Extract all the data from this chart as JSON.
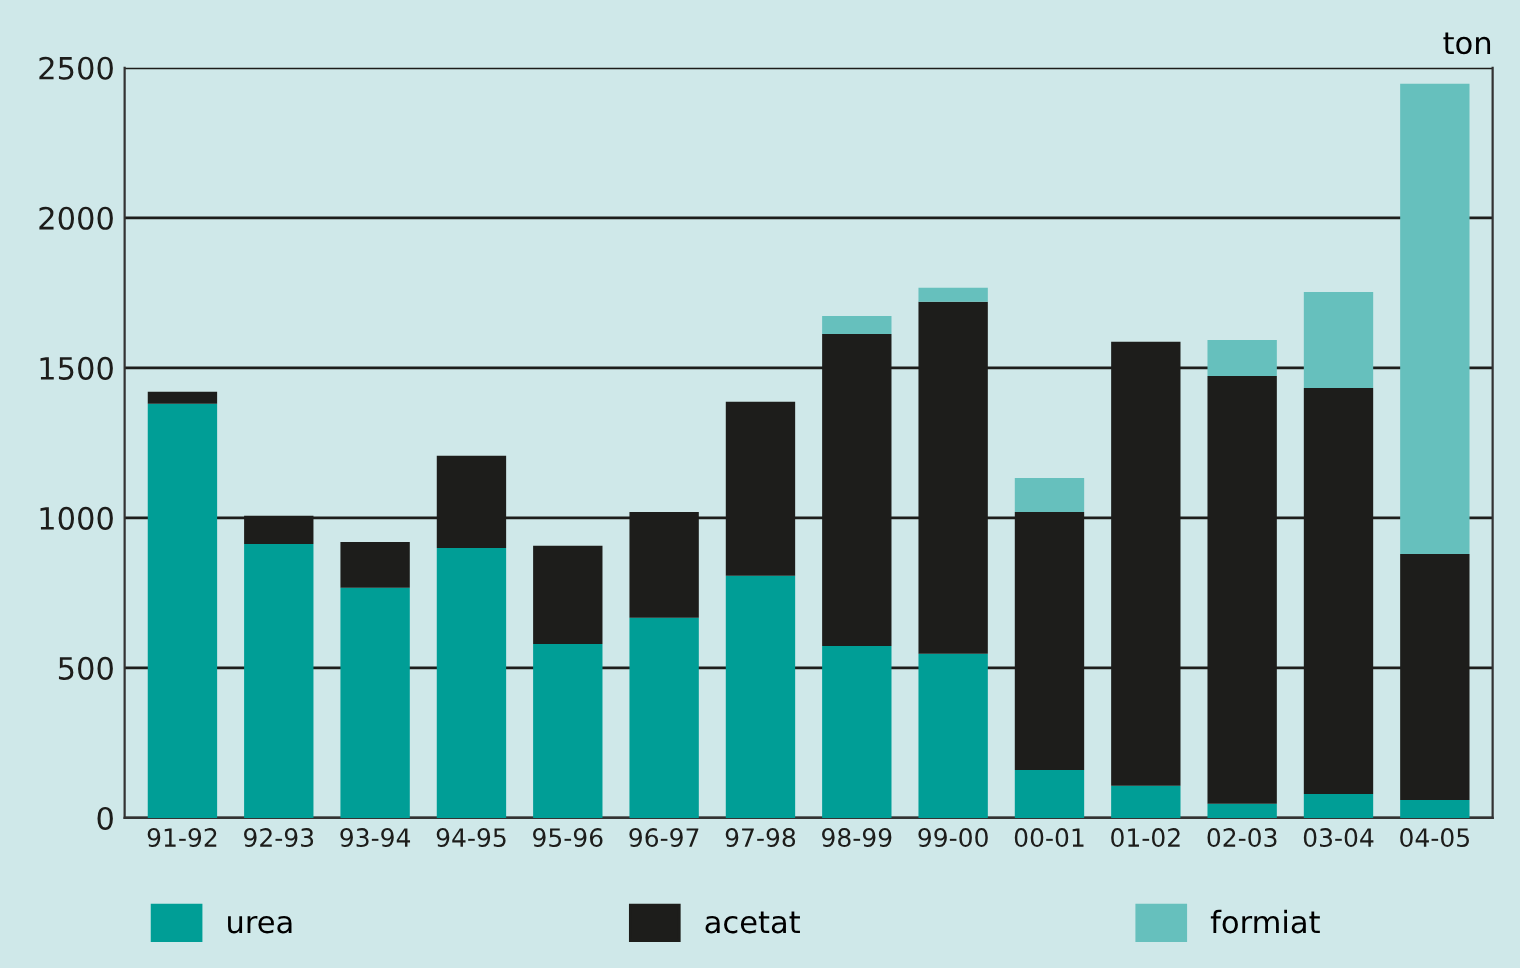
{
  "chart_data": {
    "type": "bar",
    "stacked": true,
    "ylabel": "ton",
    "categories": [
      "91-92",
      "92-93",
      "93-94",
      "94-95",
      "95-96",
      "96-97",
      "97-98",
      "98-99",
      "99-00",
      "00-01",
      "01-02",
      "02-03",
      "03-04",
      "04-05"
    ],
    "series": [
      {
        "name": "urea",
        "color": "#009e96",
        "values": [
          1380,
          913,
          767,
          900,
          580,
          667,
          807,
          573,
          547,
          160,
          107,
          47,
          80,
          60
        ]
      },
      {
        "name": "acetat",
        "color": "#1d1d1b",
        "values": [
          40,
          94,
          153,
          307,
          327,
          353,
          580,
          1040,
          1173,
          860,
          1480,
          1426,
          1353,
          820
        ]
      },
      {
        "name": "formiat",
        "color": "#66c0bd",
        "values": [
          0,
          0,
          0,
          0,
          0,
          0,
          0,
          60,
          47,
          113,
          0,
          120,
          320,
          1567
        ]
      }
    ],
    "ylim": [
      0,
      2500
    ],
    "yticks": [
      0,
      500,
      1000,
      1500,
      2000,
      2500
    ],
    "grid": "y",
    "legend": "bottom"
  }
}
